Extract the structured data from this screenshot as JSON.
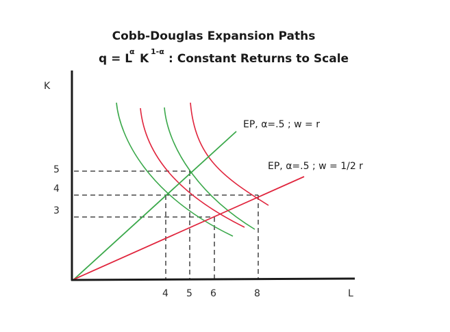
{
  "title": {
    "line1": "Cobb-Douglas Expansion Paths",
    "line2_prefix": "q = L",
    "alpha_exp": "α",
    "line2_mid": "K",
    "k_exp": "1-α",
    "line2_suffix": ":  Constant Returns to Scale"
  },
  "axes": {
    "y_label": "K",
    "x_label": "L",
    "y_ticks": [
      "5",
      "4",
      "3"
    ],
    "x_ticks": [
      "4",
      "5",
      "6",
      "8"
    ]
  },
  "expansion_paths": [
    {
      "label": "EP, α=.5 ;  w = r",
      "color": "#3aa84a"
    },
    {
      "label": "EP, α=.5 ;  w = 1/2 r",
      "color": "#e0243c"
    }
  ],
  "colors": {
    "green": "#3aa84a",
    "red": "#e0243c",
    "axis": "#1a1a1a"
  },
  "chart_data": {
    "type": "line",
    "title": "Cobb-Douglas Expansion Paths",
    "subtitle": "q = L^α K^(1-α) : Constant Returns to Scale",
    "xlabel": "L",
    "ylabel": "K",
    "x_ticks": [
      4,
      5,
      6,
      8
    ],
    "y_ticks": [
      3,
      4,
      5
    ],
    "series": [
      {
        "name": "EP, α=.5 ; w = r",
        "color": "green",
        "points": [
          [
            0,
            0
          ],
          [
            4,
            4
          ],
          [
            5,
            5
          ]
        ]
      },
      {
        "name": "EP, α=.5 ; w = 1/2 r",
        "color": "red",
        "points": [
          [
            0,
            0
          ],
          [
            6,
            3
          ],
          [
            8,
            4
          ]
        ]
      },
      {
        "name": "isoquant (green) through (4,4)",
        "color": "green"
      },
      {
        "name": "isoquant (green) through (5,5)",
        "color": "green"
      },
      {
        "name": "isoquant (red) through (6,3)",
        "color": "red"
      },
      {
        "name": "isoquant (red) through (8,4)",
        "color": "red"
      }
    ],
    "highlighted_points": [
      [
        4,
        4
      ],
      [
        5,
        5
      ],
      [
        6,
        3
      ],
      [
        8,
        4
      ]
    ]
  }
}
